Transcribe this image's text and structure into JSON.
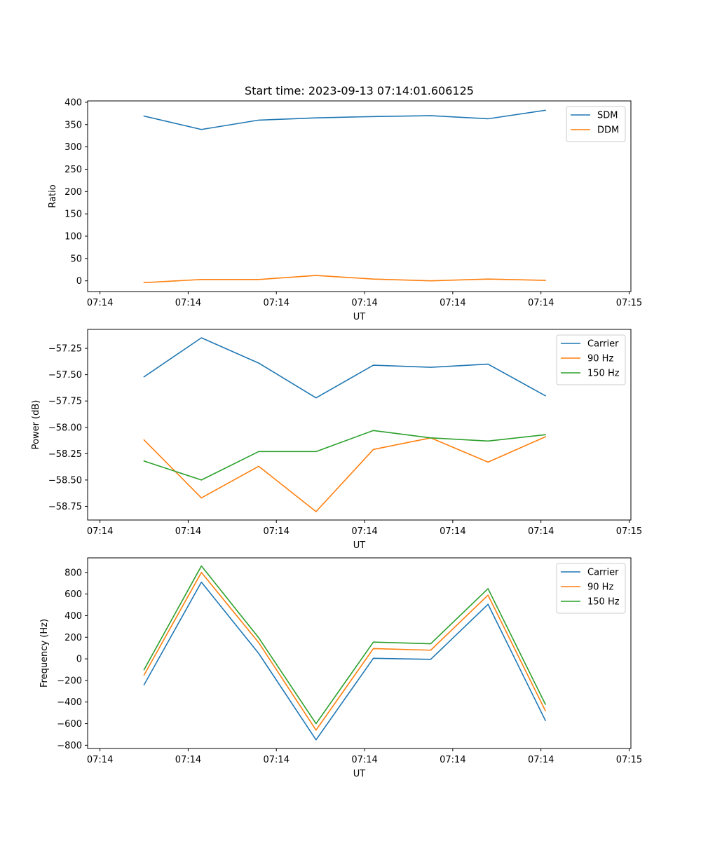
{
  "chart_data": [
    {
      "type": "line",
      "title": "Start time: 2023-09-13 07:14:01.606125",
      "xlabel": "UT",
      "ylabel": "Ratio",
      "x": [
        0.5,
        1.15,
        1.8,
        2.45,
        3.1,
        3.75,
        4.4,
        5.05
      ],
      "xticks": [
        0,
        1,
        2,
        3,
        4,
        5,
        6
      ],
      "xtick_labels": [
        "07:14",
        "07:14",
        "07:14",
        "07:14",
        "07:14",
        "07:14",
        "07:15"
      ],
      "xlim": [
        -0.14,
        6.02
      ],
      "ylim": [
        -24,
        403
      ],
      "yticks": [
        0,
        50,
        100,
        150,
        200,
        250,
        300,
        350,
        400
      ],
      "ytick_labels": [
        "0",
        "50",
        "100",
        "150",
        "200",
        "250",
        "300",
        "350",
        "400"
      ],
      "legend_loc": "top-right",
      "series": [
        {
          "name": "SDM",
          "color": "#1f77b4",
          "values": [
            369,
            339,
            360,
            365,
            368,
            370,
            363,
            382
          ]
        },
        {
          "name": "DDM",
          "color": "#ff7f0e",
          "values": [
            -4,
            3,
            3,
            12,
            4,
            0,
            4,
            1
          ]
        }
      ]
    },
    {
      "type": "line",
      "title": "",
      "xlabel": "UT",
      "ylabel": "Power (dB)",
      "x": [
        0.5,
        1.15,
        1.8,
        2.45,
        3.1,
        3.75,
        4.4,
        5.05
      ],
      "xticks": [
        0,
        1,
        2,
        3,
        4,
        5,
        6
      ],
      "xtick_labels": [
        "07:14",
        "07:14",
        "07:14",
        "07:14",
        "07:14",
        "07:14",
        "07:15"
      ],
      "xlim": [
        -0.14,
        6.02
      ],
      "ylim": [
        -58.88,
        -57.07
      ],
      "yticks": [
        -58.75,
        -58.5,
        -58.25,
        -58.0,
        -57.75,
        -57.5,
        -57.25
      ],
      "ytick_labels": [
        "−58.75",
        "−58.50",
        "−58.25",
        "−58.00",
        "−57.75",
        "−57.50",
        "−57.25"
      ],
      "legend_loc": "top-right",
      "series": [
        {
          "name": "Carrier",
          "color": "#1f77b4",
          "values": [
            -57.52,
            -57.15,
            -57.39,
            -57.72,
            -57.41,
            -57.43,
            -57.4,
            -57.7
          ]
        },
        {
          "name": "90 Hz",
          "color": "#ff7f0e",
          "values": [
            -58.12,
            -58.67,
            -58.37,
            -58.8,
            -58.21,
            -58.1,
            -58.33,
            -58.09
          ]
        },
        {
          "name": "150 Hz",
          "color": "#2ca02c",
          "values": [
            -58.32,
            -58.5,
            -58.23,
            -58.23,
            -58.03,
            -58.1,
            -58.13,
            -58.07
          ]
        }
      ]
    },
    {
      "type": "line",
      "title": "",
      "xlabel": "UT",
      "ylabel": "Frequency (Hz)",
      "x": [
        0.5,
        1.15,
        1.8,
        2.45,
        3.1,
        3.75,
        4.4,
        5.05
      ],
      "xticks": [
        0,
        1,
        2,
        3,
        4,
        5,
        6
      ],
      "xtick_labels": [
        "07:14",
        "07:14",
        "07:14",
        "07:14",
        "07:14",
        "07:14",
        "07:15"
      ],
      "xlim": [
        -0.14,
        6.02
      ],
      "ylim": [
        -830,
        935
      ],
      "yticks": [
        -800,
        -600,
        -400,
        -200,
        0,
        200,
        400,
        600,
        800
      ],
      "ytick_labels": [
        "−800",
        "−600",
        "−400",
        "−200",
        "0",
        "200",
        "400",
        "600",
        "800"
      ],
      "legend_loc": "top-right",
      "series": [
        {
          "name": "Carrier",
          "color": "#1f77b4",
          "values": [
            -240,
            710,
            50,
            -750,
            5,
            -5,
            505,
            -570
          ]
        },
        {
          "name": "90 Hz",
          "color": "#ff7f0e",
          "values": [
            -150,
            800,
            150,
            -660,
            95,
            80,
            590,
            -480
          ]
        },
        {
          "name": "150 Hz",
          "color": "#2ca02c",
          "values": [
            -100,
            860,
            195,
            -600,
            155,
            140,
            650,
            -420
          ]
        }
      ]
    }
  ]
}
